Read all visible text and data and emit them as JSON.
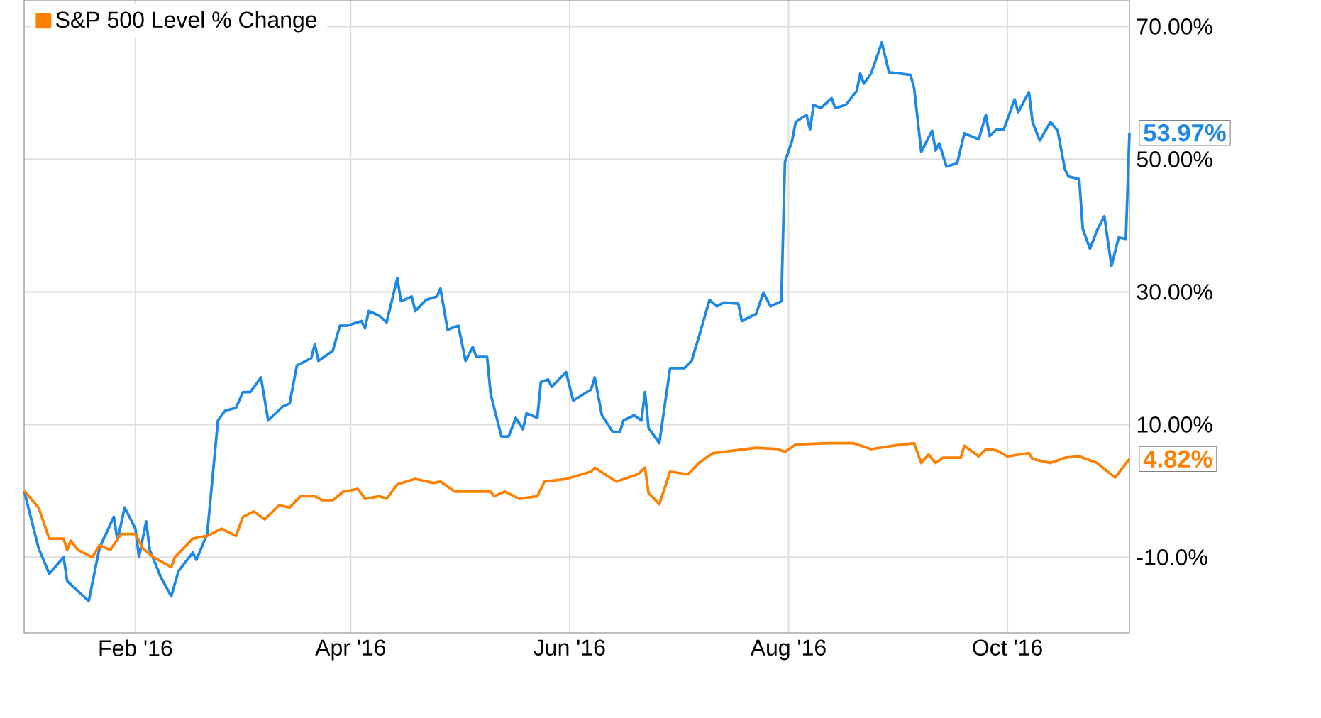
{
  "chart_data": {
    "type": "line",
    "xlim": [
      "2016-01-01",
      "2016-11-04"
    ],
    "xticks": [
      {
        "value": "2016-02-01",
        "label": "Feb '16"
      },
      {
        "value": "2016-04-01",
        "label": "Apr '16"
      },
      {
        "value": "2016-06-01",
        "label": "Jun '16"
      },
      {
        "value": "2016-08-01",
        "label": "Aug '16"
      },
      {
        "value": "2016-10-01",
        "label": "Oct '16"
      }
    ],
    "ylim": [
      -21.4,
      74
    ],
    "yticks": [
      {
        "value": -10,
        "label": "-10.0%"
      },
      {
        "value": 10,
        "label": "10.00%"
      },
      {
        "value": 30,
        "label": "30.00%"
      },
      {
        "value": 50,
        "label": "50.00%"
      },
      {
        "value": 70,
        "label": "70.00%"
      }
    ],
    "grid": true,
    "legend": "top left",
    "series": [
      {
        "color": "#1e88e5",
        "x": [
          "2016-01-01",
          "2016-01-05",
          "2016-01-08",
          "2016-01-12",
          "2016-01-13",
          "2016-01-19",
          "2016-01-22",
          "2016-01-26",
          "2016-01-27",
          "2016-01-29",
          "2016-02-01",
          "2016-02-02",
          "2016-02-04",
          "2016-02-05",
          "2016-02-08",
          "2016-02-11",
          "2016-02-13",
          "2016-02-17",
          "2016-02-18",
          "2016-02-21",
          "2016-02-24",
          "2016-02-26",
          "2016-02-29",
          "2016-03-02",
          "2016-03-04",
          "2016-03-07",
          "2016-03-09",
          "2016-03-13",
          "2016-03-15",
          "2016-03-17",
          "2016-03-21",
          "2016-03-22",
          "2016-03-23",
          "2016-03-27",
          "2016-03-29",
          "2016-03-31",
          "2016-04-04",
          "2016-04-05",
          "2016-04-06",
          "2016-04-09",
          "2016-04-11",
          "2016-04-14",
          "2016-04-15",
          "2016-04-18",
          "2016-04-19",
          "2016-04-22",
          "2016-04-25",
          "2016-04-26",
          "2016-04-28",
          "2016-05-01",
          "2016-05-03",
          "2016-05-05",
          "2016-05-06",
          "2016-05-09",
          "2016-05-10",
          "2016-05-13",
          "2016-05-15",
          "2016-05-17",
          "2016-05-19",
          "2016-05-20",
          "2016-05-23",
          "2016-05-24",
          "2016-05-26",
          "2016-05-27",
          "2016-05-31",
          "2016-06-02",
          "2016-06-07",
          "2016-06-08",
          "2016-06-10",
          "2016-06-13",
          "2016-06-15",
          "2016-06-16",
          "2016-06-19",
          "2016-06-21",
          "2016-06-22",
          "2016-06-23",
          "2016-06-26",
          "2016-06-29",
          "2016-07-03",
          "2016-07-05",
          "2016-07-07",
          "2016-07-10",
          "2016-07-12",
          "2016-07-14",
          "2016-07-18",
          "2016-07-19",
          "2016-07-23",
          "2016-07-25",
          "2016-07-27",
          "2016-07-30",
          "2016-07-31",
          "2016-08-02",
          "2016-08-03",
          "2016-08-06",
          "2016-08-07",
          "2016-08-08",
          "2016-08-10",
          "2016-08-13",
          "2016-08-14",
          "2016-08-17",
          "2016-08-20",
          "2016-08-21",
          "2016-08-22",
          "2016-08-24",
          "2016-08-27",
          "2016-08-29",
          "2016-09-04",
          "2016-09-05",
          "2016-09-07",
          "2016-09-10",
          "2016-09-11",
          "2016-09-12",
          "2016-09-14",
          "2016-09-17",
          "2016-09-19",
          "2016-09-23",
          "2016-09-25",
          "2016-09-26",
          "2016-09-28",
          "2016-09-30",
          "2016-10-03",
          "2016-10-04",
          "2016-10-07",
          "2016-10-08",
          "2016-10-10",
          "2016-10-13",
          "2016-10-15",
          "2016-10-17",
          "2016-10-18",
          "2016-10-21",
          "2016-10-22",
          "2016-10-24",
          "2016-10-26",
          "2016-10-28",
          "2016-10-30",
          "2016-11-01",
          "2016-11-03",
          "2016-11-04"
        ],
        "values": [
          0,
          -8.6,
          -12.5,
          -10,
          -13.6,
          -16.6,
          -8.6,
          -3.9,
          -7.5,
          -2.5,
          -5.7,
          -10,
          -4.6,
          -8.9,
          -12.9,
          -15.9,
          -12.1,
          -9.3,
          -10.4,
          -6.5,
          10.6,
          12.1,
          12.5,
          14.9,
          14.9,
          17.1,
          10.6,
          12.7,
          13.2,
          18.9,
          20,
          22.1,
          19.6,
          21.1,
          24.9,
          24.9,
          25.6,
          24.5,
          27.1,
          26.4,
          25.4,
          32.1,
          28.6,
          29.3,
          27.1,
          28.8,
          29.3,
          30.5,
          24.3,
          24.9,
          19.6,
          21.7,
          20.2,
          20.2,
          14.6,
          8.2,
          8.2,
          11,
          9.3,
          11.7,
          11,
          16.4,
          16.8,
          15.7,
          17.9,
          13.6,
          15.3,
          17.1,
          11.4,
          8.9,
          8.9,
          10.6,
          11.4,
          10.6,
          14.9,
          9.5,
          7.2,
          18.5,
          18.5,
          19.6,
          23.2,
          28.8,
          27.8,
          28.4,
          28.2,
          25.6,
          26.7,
          29.9,
          27.8,
          28.6,
          49.6,
          52.8,
          55.6,
          56.7,
          54.5,
          58.2,
          57.7,
          59.2,
          57.7,
          58.2,
          60.3,
          62.9,
          61.4,
          62.9,
          67.6,
          63.1,
          62.7,
          60.7,
          51.1,
          54.3,
          51.3,
          52.4,
          48.9,
          49.4,
          53.9,
          53,
          56.7,
          53.5,
          54.5,
          54.5,
          59,
          57.1,
          60.1,
          55.6,
          52.8,
          55.6,
          54.3,
          48.5,
          47.4,
          47,
          39.5,
          36.5,
          39.3,
          41.4,
          33.9,
          38.2,
          38,
          53.97
        ]
      },
      {
        "name": "S&P 500 Level % Change",
        "color": "#ff8000",
        "x": [
          "2016-01-01",
          "2016-01-05",
          "2016-01-08",
          "2016-01-12",
          "2016-01-13",
          "2016-01-14",
          "2016-01-16",
          "2016-01-20",
          "2016-01-22",
          "2016-01-25",
          "2016-01-28",
          "2016-02-01",
          "2016-02-03",
          "2016-02-06",
          "2016-02-11",
          "2016-02-12",
          "2016-02-17",
          "2016-02-21",
          "2016-02-25",
          "2016-02-29",
          "2016-03-02",
          "2016-03-05",
          "2016-03-08",
          "2016-03-12",
          "2016-03-15",
          "2016-03-18",
          "2016-03-22",
          "2016-03-24",
          "2016-03-27",
          "2016-03-30",
          "2016-04-03",
          "2016-04-05",
          "2016-04-09",
          "2016-04-11",
          "2016-04-14",
          "2016-04-19",
          "2016-04-24",
          "2016-04-26",
          "2016-04-30",
          "2016-05-03",
          "2016-05-10",
          "2016-05-11",
          "2016-05-14",
          "2016-05-18",
          "2016-05-23",
          "2016-05-25",
          "2016-05-31",
          "2016-06-07",
          "2016-06-08",
          "2016-06-14",
          "2016-06-20",
          "2016-06-22",
          "2016-06-23",
          "2016-06-26",
          "2016-06-29",
          "2016-07-04",
          "2016-07-07",
          "2016-07-11",
          "2016-07-17",
          "2016-07-23",
          "2016-07-29",
          "2016-07-31",
          "2016-08-03",
          "2016-08-12",
          "2016-08-19",
          "2016-08-24",
          "2016-08-30",
          "2016-09-05",
          "2016-09-07",
          "2016-09-09",
          "2016-09-11",
          "2016-09-13",
          "2016-09-18",
          "2016-09-19",
          "2016-09-23",
          "2016-09-25",
          "2016-09-28",
          "2016-10-01",
          "2016-10-07",
          "2016-10-08",
          "2016-10-13",
          "2016-10-17",
          "2016-10-21",
          "2016-10-26",
          "2016-10-31",
          "2016-11-04"
        ],
        "values": [
          0,
          -2.5,
          -7.2,
          -7.2,
          -8.9,
          -7.5,
          -8.9,
          -10,
          -8.2,
          -8.9,
          -6.5,
          -6.5,
          -8.6,
          -10,
          -11.5,
          -10,
          -7.2,
          -6.8,
          -5.7,
          -6.8,
          -3.9,
          -3.1,
          -4.3,
          -2.2,
          -2.5,
          -0.8,
          -0.8,
          -1.4,
          -1.4,
          -0.1,
          0.3,
          -1.2,
          -0.8,
          -1.2,
          1,
          1.8,
          1.2,
          1.4,
          -0.1,
          -0.1,
          -0.1,
          -0.8,
          -0.1,
          -1.2,
          -0.8,
          1.4,
          1.8,
          2.9,
          3.5,
          1.4,
          2.5,
          3.5,
          -0.3,
          -2,
          2.9,
          2.5,
          4.2,
          5.7,
          6.1,
          6.5,
          6.3,
          5.9,
          7,
          7.2,
          7.2,
          6.3,
          6.8,
          7.2,
          4.2,
          5.5,
          4.2,
          5,
          5,
          6.8,
          5.2,
          6.3,
          6.1,
          5.2,
          5.7,
          4.8,
          4.2,
          5,
          5.2,
          4.2,
          2,
          4.82
        ]
      }
    ],
    "annotations": [
      {
        "text": "53.97%",
        "x": "2016-11-04",
        "y": 53.97
      },
      {
        "text": "4.82%",
        "x": "2016-11-04",
        "y": 4.82
      }
    ]
  }
}
